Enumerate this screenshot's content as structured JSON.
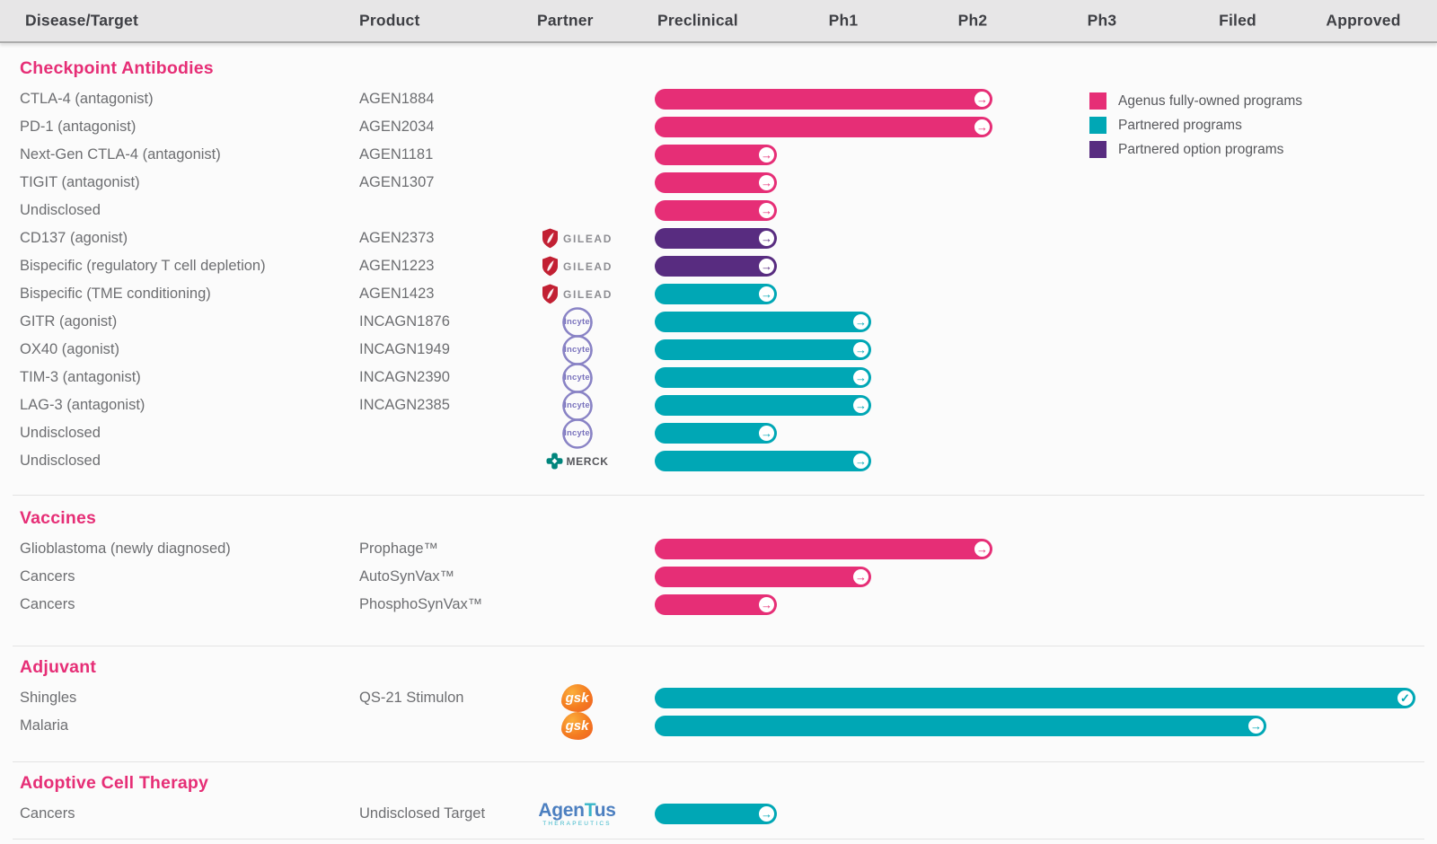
{
  "colors": {
    "pink": "#E62E76",
    "teal": "#00A7B5",
    "purple": "#582C80",
    "header_text": "#3E3F44",
    "row_text": "#6D6E71"
  },
  "header": {
    "columns": [
      "Disease/Target",
      "Product",
      "Partner",
      "Preclinical",
      "Ph1",
      "Ph2",
      "Ph3",
      "Filed",
      "Approved"
    ]
  },
  "partners": {
    "gilead": {
      "label": "GILEAD"
    },
    "incyte": {
      "label": "Incyte"
    },
    "merck": {
      "label": "MERCK"
    },
    "gsk": {
      "label": "gsk"
    },
    "agentus": {
      "label_agen": "Agen",
      "label_t": "T",
      "label_us": "us",
      "sublabel": "THERAPEUTICS"
    }
  },
  "chart_data": {
    "type": "pipeline-bar",
    "stages": [
      "Preclinical",
      "Ph1",
      "Ph2",
      "Ph3",
      "Filed",
      "Approved"
    ],
    "legend": [
      {
        "color_key": "pink",
        "label": "Agenus fully-owned programs"
      },
      {
        "color_key": "teal",
        "label": "Partnered programs"
      },
      {
        "color_key": "purple",
        "label": "Partnered option programs"
      }
    ],
    "sections": [
      {
        "title": "Checkpoint Antibodies",
        "rows": [
          {
            "disease": "CTLA-4 (antagonist)",
            "product": "AGEN1884",
            "partner": null,
            "color": "pink",
            "stage": "ph2",
            "end": "arrow"
          },
          {
            "disease": "PD-1 (antagonist)",
            "product": "AGEN2034",
            "partner": null,
            "color": "pink",
            "stage": "ph2",
            "end": "arrow"
          },
          {
            "disease": "Next-Gen CTLA-4 (antagonist)",
            "product": "AGEN1181",
            "partner": null,
            "color": "pink",
            "stage": "preclinical",
            "end": "arrow"
          },
          {
            "disease": "TIGIT (antagonist)",
            "product": "AGEN1307",
            "partner": null,
            "color": "pink",
            "stage": "preclinical",
            "end": "arrow"
          },
          {
            "disease": "Undisclosed",
            "product": "",
            "partner": null,
            "color": "pink",
            "stage": "preclinical",
            "end": "arrow"
          },
          {
            "disease": "CD137 (agonist)",
            "product": "AGEN2373",
            "partner": "gilead",
            "color": "purple",
            "stage": "preclinical",
            "end": "arrow"
          },
          {
            "disease": "Bispecific (regulatory T cell depletion)",
            "product": "AGEN1223",
            "partner": "gilead",
            "color": "purple",
            "stage": "preclinical",
            "end": "arrow"
          },
          {
            "disease": "Bispecific (TME conditioning)",
            "product": "AGEN1423",
            "partner": "gilead",
            "color": "teal",
            "stage": "preclinical",
            "end": "arrow"
          },
          {
            "disease": "GITR (agonist)",
            "product": "INCAGN1876",
            "partner": "incyte",
            "color": "teal",
            "stage": "ph1",
            "end": "arrow"
          },
          {
            "disease": "OX40 (agonist)",
            "product": "INCAGN1949",
            "partner": "incyte",
            "color": "teal",
            "stage": "ph1",
            "end": "arrow"
          },
          {
            "disease": "TIM-3 (antagonist)",
            "product": "INCAGN2390",
            "partner": "incyte",
            "color": "teal",
            "stage": "ph1",
            "end": "arrow"
          },
          {
            "disease": "LAG-3 (antagonist)",
            "product": "INCAGN2385",
            "partner": "incyte",
            "color": "teal",
            "stage": "ph1",
            "end": "arrow"
          },
          {
            "disease": "Undisclosed",
            "product": "",
            "partner": "incyte",
            "color": "teal",
            "stage": "preclinical",
            "end": "arrow"
          },
          {
            "disease": "Undisclosed",
            "product": "",
            "partner": "merck",
            "color": "teal",
            "stage": "ph1",
            "end": "arrow"
          }
        ]
      },
      {
        "title": "Vaccines",
        "rows": [
          {
            "disease": "Glioblastoma (newly diagnosed)",
            "product": "Prophage™",
            "partner": null,
            "color": "pink",
            "stage": "ph2",
            "end": "arrow"
          },
          {
            "disease": "Cancers",
            "product": "AutoSynVax™",
            "partner": null,
            "color": "pink",
            "stage": "ph1",
            "end": "arrow"
          },
          {
            "disease": "Cancers",
            "product": "PhosphoSynVax™",
            "partner": null,
            "color": "pink",
            "stage": "preclinical",
            "end": "arrow"
          }
        ]
      },
      {
        "title": "Adjuvant",
        "rows": [
          {
            "disease": "Shingles",
            "product": "QS-21 Stimulon",
            "partner": "gsk",
            "color": "teal",
            "stage": "approved",
            "end": "check"
          },
          {
            "disease": "Malaria",
            "product": "",
            "partner": "gsk",
            "color": "teal",
            "stage": "filed",
            "end": "arrow"
          }
        ]
      },
      {
        "title": "Adoptive Cell Therapy",
        "rows": [
          {
            "disease": "Cancers",
            "product": "Undisclosed Target",
            "partner": "agentus",
            "color": "teal",
            "stage": "preclinical",
            "end": "arrow"
          }
        ]
      }
    ]
  }
}
